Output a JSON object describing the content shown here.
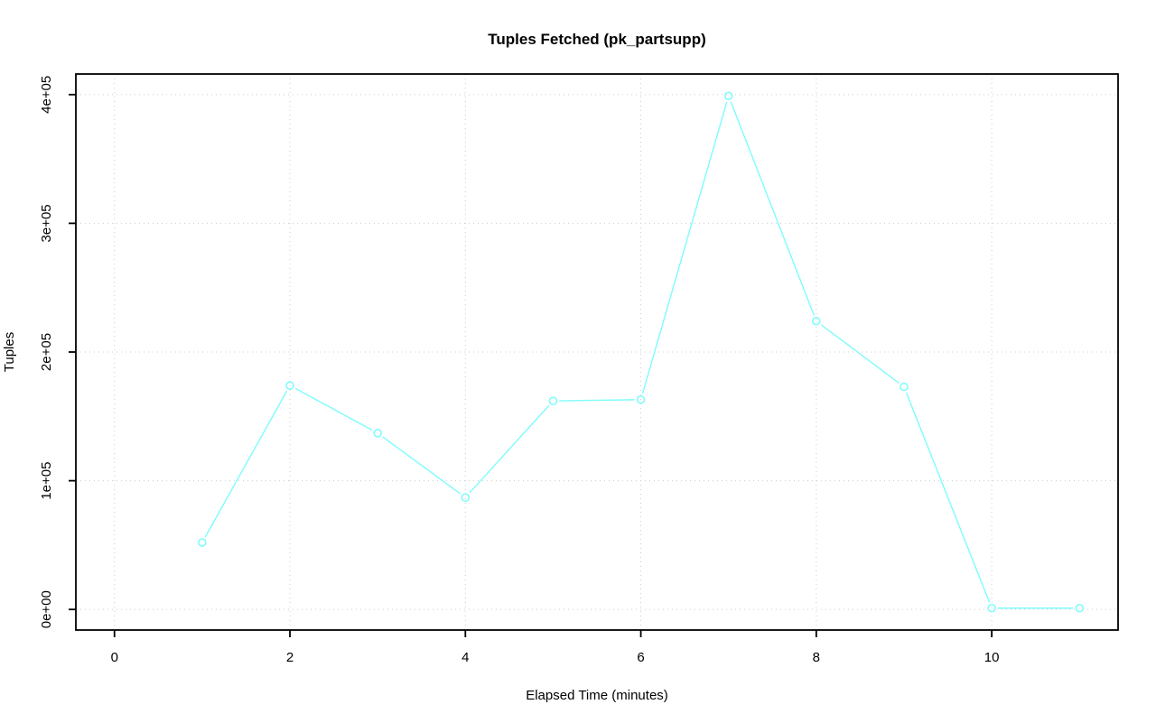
{
  "chart_data": {
    "type": "line",
    "title": "Tuples Fetched (pk_partsupp)",
    "xlabel": "Elapsed Time (minutes)",
    "ylabel": "Tuples",
    "x": [
      1,
      2,
      3,
      4,
      5,
      6,
      7,
      8,
      9,
      10,
      11
    ],
    "values": [
      52000,
      174000,
      137000,
      87000,
      162000,
      163000,
      399000,
      224000,
      173000,
      1000,
      1000
    ],
    "series_name": "tuples_fetched",
    "x_ticks": [
      0,
      2,
      4,
      6,
      8,
      10
    ],
    "x_tick_labels": [
      "0",
      "2",
      "4",
      "6",
      "8",
      "10"
    ],
    "y_ticks": [
      0,
      100000,
      200000,
      300000,
      400000
    ],
    "y_tick_labels": [
      "0e+00",
      "1e+05",
      "2e+05",
      "3e+05",
      "4e+05"
    ],
    "xlim": [
      -0.44,
      11.44
    ],
    "ylim": [
      -16000,
      416000
    ],
    "grid": "dotted",
    "legend_position": "none",
    "marker": "open-circle",
    "line_style": "segments-with-marker-gaps"
  },
  "colors": {
    "line": "#7ffcfc",
    "grid": "#cccccc",
    "axis": "#000000",
    "text": "#000000",
    "background": "#ffffff"
  }
}
